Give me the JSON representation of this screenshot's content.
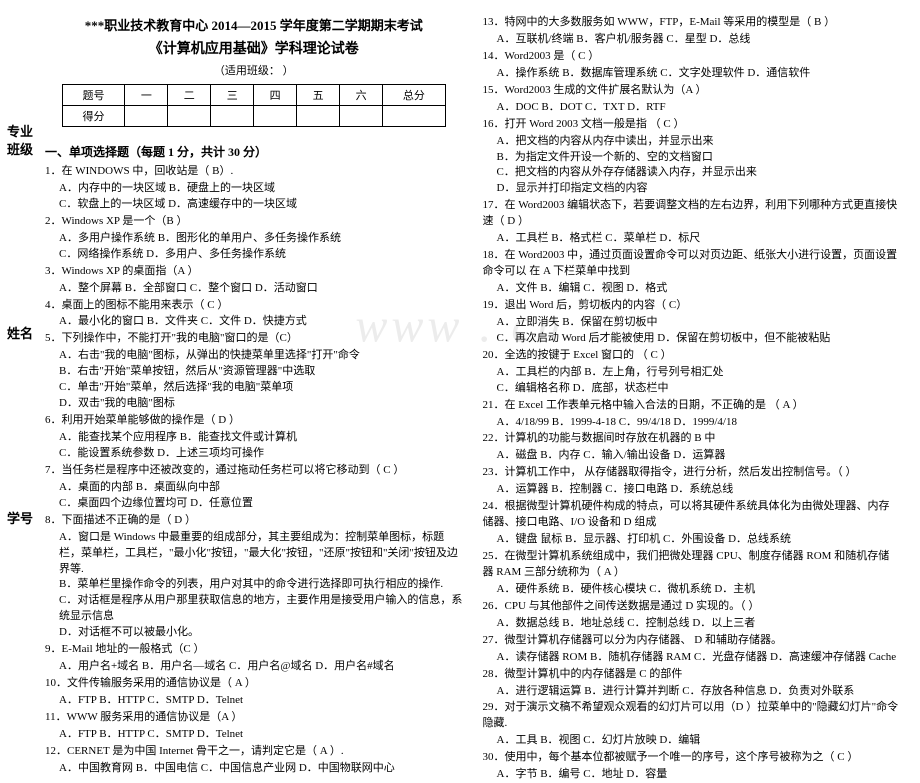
{
  "watermark": "www . cn",
  "sidebar": {
    "l1a": "专业",
    "l1b": "班级",
    "l2": "姓名",
    "l3": "学号"
  },
  "header": {
    "title1": "***职业技术教育中心 2014—2015 学年度第二学期期末考试",
    "title2": "《计算机应用基础》学科理论试卷",
    "subtitle": "（适用班级：        ）"
  },
  "table": {
    "r1c1": "题号",
    "r1c2": "一",
    "r1c3": "二",
    "r1c4": "三",
    "r1c5": "四",
    "r1c6": "五",
    "r1c7": "六",
    "r1c8": "总分",
    "r2c1": "得分"
  },
  "sectionA": "一、单项选择题（每题 1 分，共计 30 分）",
  "q": {
    "1": "1．在 WINDOWS 中，回收站是（ B）.",
    "1o": "A．内存中的一块区域      B．硬盘上的一块区域\nC．软盘上的一块区域      D．高速缓存中的一块区域",
    "2": "2．Windows XP 是一个（B ）",
    "2o": "A．多用户操作系统      B．图形化的单用户、多任务操作系统\nC．网络操作系统        D．多用户、多任务操作系统",
    "3": "3．Windows XP 的桌面指（A  ）",
    "3o": "A．整个屏幕    B．全部窗口    C．整个窗口    D．活动窗口",
    "4": "4．桌面上的图标不能用来表示（ C ）",
    "4o": "A．最小化的窗口  B．文件夹  C．文件    D．快捷方式",
    "5": "5．下列操作中，不能打开\"我的电脑\"窗口的是（C）",
    "5o": "A．右击\"我的电脑\"图标，从弹出的快捷菜单里选择\"打开\"命令\nB．右击\"开始\"菜单按钮，然后从\"资源管理器\"中选取\nC．单击\"开始\"菜单，然后选择\"我的电脑\"菜单项\nD．双击\"我的电脑\"图标",
    "6": "6．利用开始菜单能够做的操作是（ D    ）",
    "6o": "A．能查找某个应用程序        B．能查找文件或计算机\nC．能设置系统参数            D．上述三项均可操作",
    "7": "7．当任务栏是程序中还被改变的，通过拖动任务栏可以将它移动到（ C ）",
    "7o": "A．桌面的内部                B．桌面纵向中部\nC．桌面四个边缘位置均可      D．任意位置",
    "8": "8．下面描述不正确的是（ D ）",
    "8o": "A．窗口是 Windows 中最重要的组成部分，其主要组成为：控制菜单图标，标题栏，菜单栏，工具栏，\"最小化\"按钮，\"最大化\"按钮，\"还原\"按钮和\"关闭\"按钮及边界等.\nB．菜单栏里操作命令的列表，用户对其中的命令进行选择即可执行相应的操作.\nC．对话框是程序从用户那里获取信息的地方，主要作用是接受用户输入的信息，系统显示信息\nD．对话框不可以被最小化。",
    "9": "9．E-Mail 地址的一般格式（C ）",
    "9o": "A．用户名+域名  B．用户名—域名  C．用户名@域名  D．用户名#域名",
    "10": "10．文件传输服务采用的通信协议是（ A  ）",
    "10o": "A．FTP      B．HTTP      C．SMTP      D．Telnet",
    "11": "11．WWW 服务采用的通信协议是（A ）",
    "11o": "A．FTP      B．HTTP      C．SMTP      D．Telnet",
    "12": "12．CERNET 是为中国 Internet 骨干之一，请判定它是（ A ）.",
    "12o": "A．中国教育网  B．中国电信  C．中国信息产业网  D．中国物联网中心",
    "13": "13．特网中的大多数服务如 WWW，FTP，E-Mail 等采用的模型是（ B ）",
    "13o": "A．互联机/终端   B．客户机/服务器  C．星型      D．总线",
    "14": "14．Word2003 是（ C  ）",
    "14o": "A．操作系统  B．数据库管理系统  C．文字处理软件   D．通信软件",
    "15": "15．Word2003 生成的文件扩展名默认为（A  ）",
    "15o": "A．DOC      B．DOT      C．TXT      D．RTF",
    "16": "16．打开 Word 2003 文档一般是指 （ C ）",
    "16o": "A．把文档的内容从内存中读出，并显示出来\nB．为指定文件开设一个新的、空的文档窗口\nC．把文档的内容从外存存储器读入内存，并显示出来\nD．显示并打印指定文档的内容",
    "17": "17．在 Word2003 编辑状态下，若要调整文档的左右边界，利用下列哪种方式更直接快速（ D    ）",
    "17o": "A．工具栏    B．格式栏    C．菜单栏    D．标尺",
    "18": "18．在 Word2003 中，通过页面设置命令可以对页边距、纸张大小进行设置，页面设置命令可以 在        A        下栏菜单中找到",
    "18o": "A．文件      B．编辑      C．视图      D．格式",
    "19": "19．退出 Word 后，剪切板内的内容（ C）",
    "19o": "A．立即消失                        B．保留在剪切板中\nC．再次启动 Word 后才能被使用      D．保留在剪切板中，但不能被粘贴",
    "20": "20．全选的按键于 Excel 窗口的 （ C ）",
    "20o": "A．工具栏的内部            B．左上角，行号列号相汇处\nC．编辑格名称            D．底部，状态栏中",
    "21": "21．在 Excel 工作表单元格中输入合法的日期，不正确的是 （ A ）",
    "21o": "A．4/18/99  B．1999-4-18  C．99/4/18  D．1999/4/18",
    "22": "22．计算机的功能与数据间时存放在机器的 B        中",
    "22o": "A．磁盘      B．内存      C．输入/输出设备  D．运算器",
    "23": "23．计算机工作中，        从存储器取得指令，进行分析，然后发出控制信号。（ ）",
    "23o": "A．运算器    B．控制器    C．接口电路    D．系统总线",
    "24": "24．根据微型计算机硬件构成的特点，可以将其硬件系统具体化为由微处理器、内存储器、接口电路、I/O 设备和      D    组成",
    "24o": "A．键盘 鼠标  B．显示器、打印机  C．外围设备    D．总线系统",
    "25": "25．在微型计算机系统组成中，我们把微处理器 CPU、制度存储器 ROM 和随机存储器 RAM 三部分统称为（ A ）",
    "25o": "A．硬件系统  B．硬件核心模块  C．微机系统    D．主机",
    "26": "26．CPU 与其他部件之间传送数据是通过 D        实现的。（  ）",
    "26o": "A．数据总线  B．地址总线  C．控制总线    D．以上三者",
    "27": "27．微型计算机存储器可以分为内存储器、        D    和辅助存储器。",
    "27o": "A．读存储器 ROM  B．随机存储器 RAM  C．光盘存储器  D．高速缓冲存储器 Cache",
    "28": "28．微型计算机中的内存储器是 C        的部件",
    "28o": "A．进行逻辑运算  B．进行计算并判断  C．存放各种信息  D．负责对外联系",
    "29": "29．对于演示文稿不希望观众观看的幻灯片可以用（D ）拉菜单中的\"隐藏幻灯片\"命令隐藏.",
    "29o": "A．工具    B．视图    C．幻灯片放映    D．编辑",
    "30": "30．使用中，每个基本位都被赋予一个唯一的序号，这个序号被称为之（ C ）",
    "30o": "A．字节    B．编号    C．地址      D．容量"
  }
}
